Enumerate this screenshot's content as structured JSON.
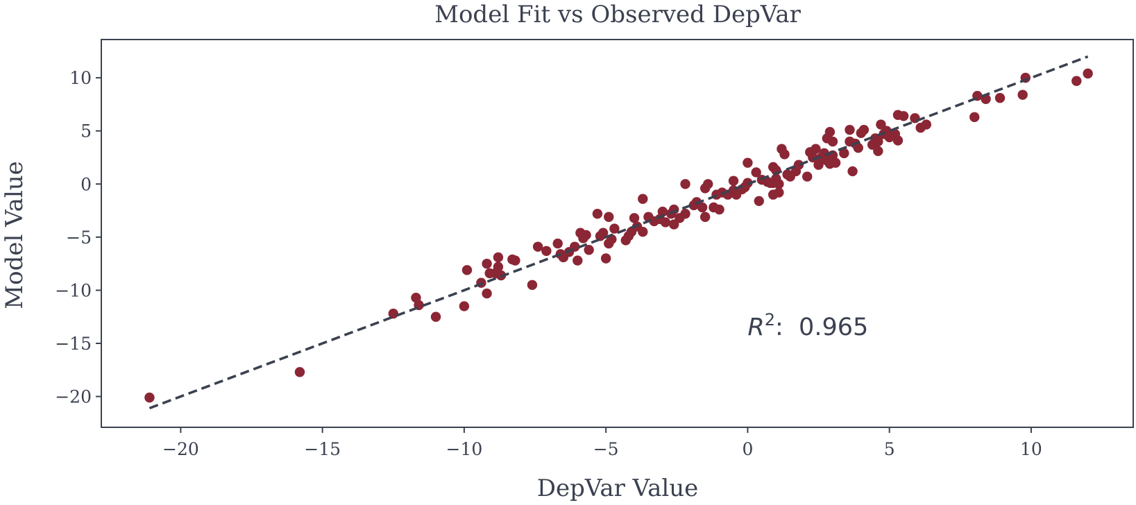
{
  "chart_data": {
    "type": "scatter",
    "title": "Model Fit vs Observed DepVar",
    "xlabel": "DepVar Value",
    "ylabel": "Model Value",
    "xlim": [
      -22.8,
      13.6
    ],
    "ylim": [
      -22.9,
      13.6
    ],
    "xticks": [
      -20,
      -15,
      -10,
      -5,
      0,
      5,
      10
    ],
    "yticks": [
      -20,
      -15,
      -10,
      -5,
      0,
      5,
      10
    ],
    "xtick_labels": [
      "−20",
      "−15",
      "−10",
      "−5",
      "0",
      "5",
      "10"
    ],
    "ytick_labels": [
      "−20",
      "−15",
      "−10",
      "−5",
      "0",
      "5",
      "10"
    ],
    "grid": false,
    "point_color": "#8b2635",
    "fit_line_color": "#3b4150",
    "fit_line": {
      "x": [
        -21.1,
        12.0
      ],
      "y": [
        -21.1,
        12.0
      ],
      "style": "dashed"
    },
    "annotation": {
      "prefix": "R",
      "superscript": "2",
      "separator": ":",
      "value": "0.965",
      "x": 0.0,
      "y": -14.2
    },
    "points": [
      [
        -21.1,
        -20.1
      ],
      [
        -15.8,
        -17.7
      ],
      [
        -12.5,
        -12.2
      ],
      [
        -11.7,
        -10.7
      ],
      [
        -11.6,
        -11.4
      ],
      [
        -11.0,
        -12.5
      ],
      [
        -10.0,
        -11.5
      ],
      [
        -9.9,
        -8.1
      ],
      [
        -9.4,
        -9.3
      ],
      [
        -9.2,
        -10.3
      ],
      [
        -9.2,
        -7.5
      ],
      [
        -9.1,
        -8.4
      ],
      [
        -8.9,
        -8.4
      ],
      [
        -8.8,
        -7.8
      ],
      [
        -8.7,
        -8.6
      ],
      [
        -8.8,
        -6.9
      ],
      [
        -8.3,
        -7.1
      ],
      [
        -8.2,
        -7.2
      ],
      [
        -7.6,
        -9.5
      ],
      [
        -7.4,
        -5.9
      ],
      [
        -7.1,
        -6.3
      ],
      [
        -6.7,
        -5.6
      ],
      [
        -6.6,
        -6.6
      ],
      [
        -6.5,
        -6.9
      ],
      [
        -6.3,
        -6.4
      ],
      [
        -6.1,
        -5.9
      ],
      [
        -6.0,
        -7.2
      ],
      [
        -5.9,
        -4.6
      ],
      [
        -5.8,
        -5.1
      ],
      [
        -5.7,
        -4.8
      ],
      [
        -5.6,
        -6.2
      ],
      [
        -5.3,
        -2.8
      ],
      [
        -5.2,
        -4.9
      ],
      [
        -5.1,
        -4.6
      ],
      [
        -5.0,
        -7.0
      ],
      [
        -4.9,
        -3.1
      ],
      [
        -4.9,
        -5.6
      ],
      [
        -4.8,
        -5.2
      ],
      [
        -4.7,
        -4.2
      ],
      [
        -4.3,
        -5.3
      ],
      [
        -4.2,
        -4.9
      ],
      [
        -4.1,
        -4.5
      ],
      [
        -4.0,
        -3.2
      ],
      [
        -3.9,
        -4.0
      ],
      [
        -3.7,
        -4.5
      ],
      [
        -3.7,
        -1.4
      ],
      [
        -3.5,
        -3.1
      ],
      [
        -3.3,
        -3.5
      ],
      [
        -3.1,
        -3.3
      ],
      [
        -3.0,
        -2.6
      ],
      [
        -2.9,
        -3.6
      ],
      [
        -2.7,
        -2.8
      ],
      [
        -2.6,
        -2.4
      ],
      [
        -2.6,
        -3.8
      ],
      [
        -2.4,
        -3.2
      ],
      [
        -2.2,
        0.0
      ],
      [
        -2.2,
        -2.8
      ],
      [
        -1.9,
        -2.0
      ],
      [
        -1.8,
        -1.7
      ],
      [
        -1.6,
        -2.2
      ],
      [
        -1.5,
        -3.1
      ],
      [
        -1.5,
        -0.4
      ],
      [
        -1.4,
        0.0
      ],
      [
        -1.2,
        -2.2
      ],
      [
        -1.1,
        -1.0
      ],
      [
        -1.0,
        -2.4
      ],
      [
        -0.9,
        -0.8
      ],
      [
        -0.7,
        -1.0
      ],
      [
        -0.5,
        -0.6
      ],
      [
        -0.5,
        0.3
      ],
      [
        -0.4,
        -1.0
      ],
      [
        -0.2,
        -0.5
      ],
      [
        -0.1,
        -0.3
      ],
      [
        0.0,
        0.1
      ],
      [
        0.0,
        2.0
      ],
      [
        0.3,
        1.1
      ],
      [
        0.4,
        -1.6
      ],
      [
        0.5,
        0.4
      ],
      [
        0.7,
        0.2
      ],
      [
        0.8,
        0.1
      ],
      [
        0.9,
        0.1
      ],
      [
        0.9,
        1.6
      ],
      [
        0.9,
        -1.0
      ],
      [
        1.0,
        0.5
      ],
      [
        1.0,
        1.3
      ],
      [
        1.1,
        -0.8
      ],
      [
        1.1,
        0.0
      ],
      [
        1.2,
        3.3
      ],
      [
        1.3,
        2.8
      ],
      [
        1.4,
        0.9
      ],
      [
        1.5,
        0.7
      ],
      [
        1.7,
        1.2
      ],
      [
        1.8,
        1.8
      ],
      [
        2.1,
        0.7
      ],
      [
        2.2,
        3.0
      ],
      [
        2.3,
        2.5
      ],
      [
        2.4,
        3.3
      ],
      [
        2.5,
        1.8
      ],
      [
        2.6,
        2.5
      ],
      [
        2.7,
        2.9
      ],
      [
        2.8,
        2.2
      ],
      [
        2.8,
        4.3
      ],
      [
        2.9,
        1.9
      ],
      [
        2.9,
        4.9
      ],
      [
        3.0,
        2.7
      ],
      [
        3.0,
        4.0
      ],
      [
        3.1,
        2.0
      ],
      [
        3.4,
        2.9
      ],
      [
        3.6,
        5.1
      ],
      [
        3.6,
        4.0
      ],
      [
        3.7,
        1.2
      ],
      [
        3.8,
        3.8
      ],
      [
        3.9,
        3.4
      ],
      [
        4.0,
        4.8
      ],
      [
        4.1,
        5.1
      ],
      [
        4.4,
        3.7
      ],
      [
        4.5,
        4.3
      ],
      [
        4.6,
        4.0
      ],
      [
        4.6,
        3.1
      ],
      [
        4.7,
        5.6
      ],
      [
        4.8,
        4.7
      ],
      [
        4.9,
        5.0
      ],
      [
        5.0,
        4.4
      ],
      [
        5.2,
        4.7
      ],
      [
        5.3,
        6.5
      ],
      [
        5.3,
        4.1
      ],
      [
        5.5,
        6.4
      ],
      [
        5.9,
        6.2
      ],
      [
        6.1,
        5.3
      ],
      [
        6.3,
        5.6
      ],
      [
        8.0,
        6.3
      ],
      [
        8.1,
        8.3
      ],
      [
        8.4,
        8.0
      ],
      [
        8.9,
        8.1
      ],
      [
        9.7,
        8.4
      ],
      [
        9.8,
        10.0
      ],
      [
        11.6,
        9.7
      ],
      [
        12.0,
        10.4
      ]
    ]
  }
}
